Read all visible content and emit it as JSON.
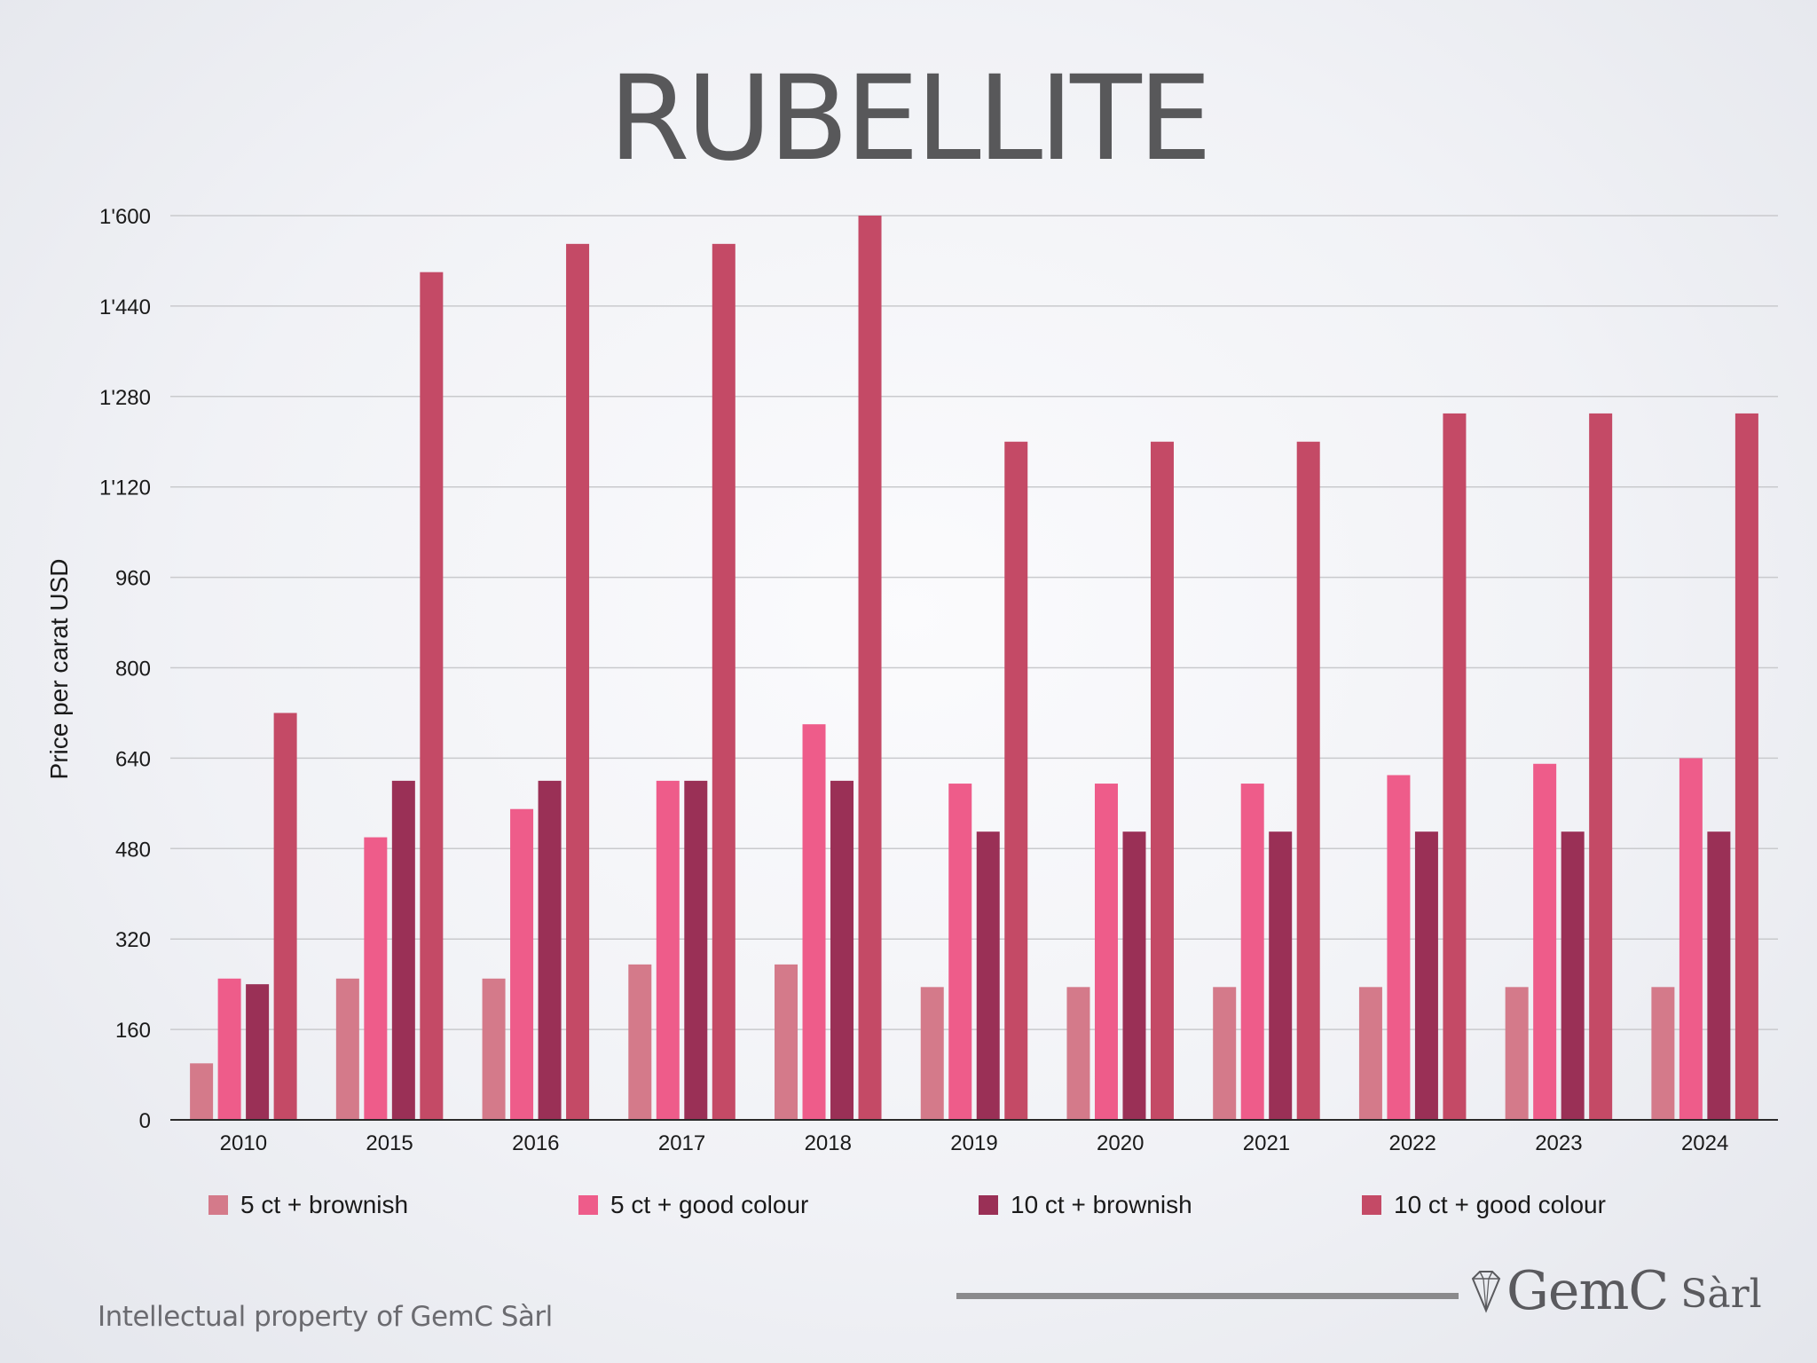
{
  "chart_data": {
    "type": "bar",
    "title": "RUBELLITE",
    "ylabel": "Price per carat USD",
    "ylim": [
      0,
      1600
    ],
    "yticks": [
      "0",
      "160",
      "320",
      "480",
      "640",
      "800",
      "960",
      "1'120",
      "1'280",
      "1'440",
      "1'600"
    ],
    "yticks_values": [
      0,
      160,
      320,
      480,
      640,
      800,
      960,
      1120,
      1280,
      1440,
      1600
    ],
    "grid": true,
    "legend_position": "bottom",
    "categories": [
      "2010",
      "2015",
      "2016",
      "2017",
      "2018",
      "2019",
      "2020",
      "2021",
      "2022",
      "2023",
      "2024"
    ],
    "series": [
      {
        "name": "5 ct + brownish",
        "color": "#d47a8a",
        "values": [
          100,
          250,
          250,
          275,
          275,
          235,
          235,
          235,
          235,
          235,
          235
        ]
      },
      {
        "name": "5 ct + good colour",
        "color": "#ee5c8a",
        "values": [
          250,
          500,
          550,
          600,
          700,
          595,
          595,
          595,
          610,
          630,
          640
        ]
      },
      {
        "name": "10 ct + brownish",
        "color": "#9a3056",
        "values": [
          240,
          600,
          600,
          600,
          600,
          510,
          510,
          510,
          510,
          510,
          510
        ]
      },
      {
        "name": "10 ct + good colour",
        "color": "#c44a66",
        "values": [
          720,
          1500,
          1550,
          1550,
          1600,
          1200,
          1200,
          1200,
          1250,
          1250,
          1250
        ]
      }
    ]
  },
  "footer": {
    "left_text": "Intellectual property of GemC Sàrl",
    "logo_name": "GemC",
    "logo_suffix": "Sàrl",
    "logo_icon": "diamond-icon"
  }
}
